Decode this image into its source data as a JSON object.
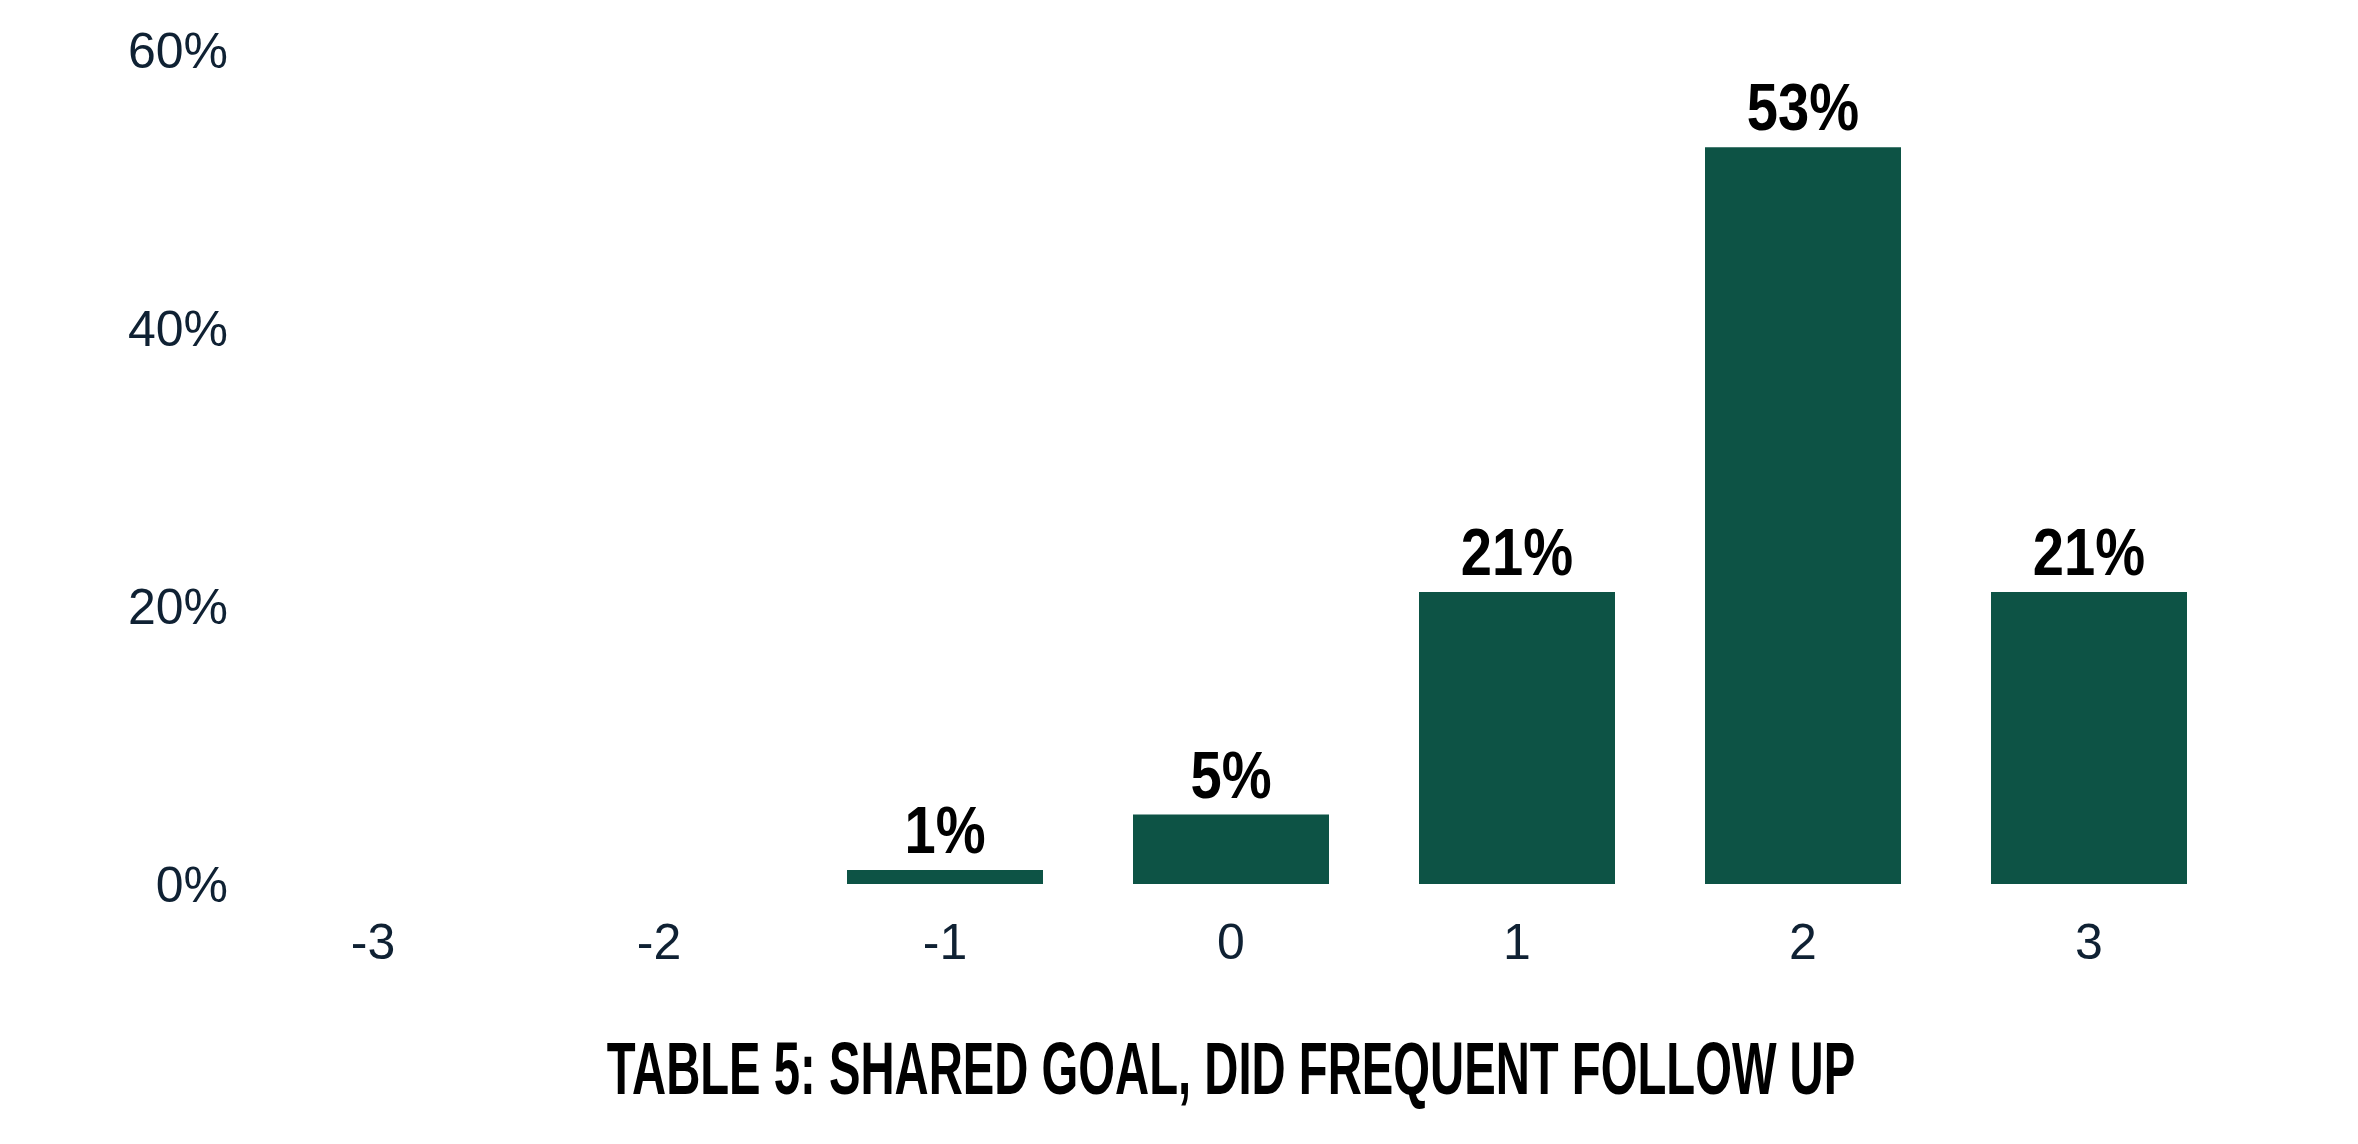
{
  "chart_data": {
    "type": "bar",
    "title": "TABLE 5: SHARED GOAL, DID FREQUENT FOLLOW UP",
    "categories": [
      "-3",
      "-2",
      "-1",
      "0",
      "1",
      "2",
      "3"
    ],
    "values": [
      0,
      0,
      1,
      5,
      21,
      53,
      21
    ],
    "color": "#0d5345",
    "ylim": [
      0,
      60
    ],
    "yticks": [
      {
        "value": 0,
        "label": "0%"
      },
      {
        "value": 20,
        "label": "20%"
      },
      {
        "value": 40,
        "label": "40%"
      },
      {
        "value": 60,
        "label": "60%"
      }
    ],
    "value_labels": [
      null,
      null,
      "1%",
      "5%",
      "21%",
      "53%",
      "21%"
    ]
  }
}
